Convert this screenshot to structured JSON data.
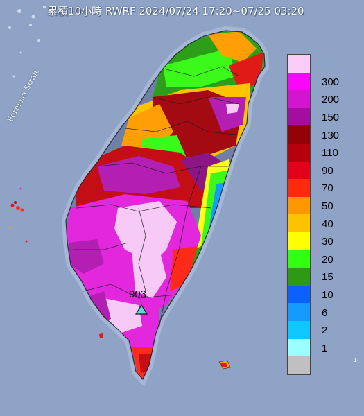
{
  "header": {
    "title": "累積10小時 RWRF 2024/07/24 17:20~07/25 03:20"
  },
  "map": {
    "sea_label": "Formosa Strait",
    "max_value_label": "903",
    "max_marker_icon": "triangle-marker-icon",
    "edge_mark": "1("
  },
  "colors": {
    "ocean": "#8fa3c7",
    "land": "#6f7fa8",
    "light_magenta": "#f6c9f7",
    "magenta": "#e227dd",
    "purple": "#b21fb2",
    "dark_purple": "#8c1686",
    "maroon": "#a30a12",
    "dark_red": "#c20e14",
    "red": "#e01a17",
    "bright_red": "#ff2a1a",
    "orange": "#ff9f05",
    "amber": "#ffc400",
    "yellow": "#ffff17",
    "green": "#3bfa1b",
    "dark_green": "#2c9e17",
    "blue": "#0c62ff",
    "light_blue": "#159cff",
    "cyan": "#0fd0ff",
    "pale_cyan": "#97ffff",
    "gray": "#c2c2c2"
  },
  "legend": {
    "labels": [
      "300",
      "200",
      "150",
      "130",
      "110",
      "90",
      "70",
      "50",
      "40",
      "30",
      "20",
      "15",
      "10",
      "6",
      "2",
      "1"
    ],
    "swatches": [
      "#fbcbf8",
      "#fa06f8",
      "#d315d0",
      "#a50d9f",
      "#930206",
      "#b7000b",
      "#e2001a",
      "#ff2a0c",
      "#ff9800",
      "#ffc200",
      "#ffff00",
      "#33ff10",
      "#2d9915",
      "#0c60ff",
      "#169aff",
      "#0fc6ff",
      "#9bffff",
      "#c0c0c0"
    ]
  }
}
